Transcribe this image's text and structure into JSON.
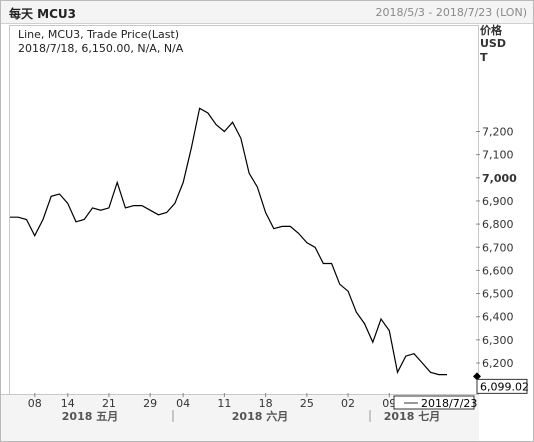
{
  "window": {
    "title": "每天 MCU3",
    "date_range": "2018/5/3 - 2018/7/23 (LON)"
  },
  "legend": {
    "line1": "Line, MCU3, Trade Price(Last)",
    "line2": "2018/7/18, 6,150.00, N/A, N/A"
  },
  "y_axis_header": {
    "line1": "价格",
    "line2": "USD",
    "line3": "T"
  },
  "last_price_label": "6,099.02",
  "crosshair_date_label": "2018/7/23",
  "colors": {
    "line": "#000000",
    "last_price_bg": "#ffffff",
    "panel_bg": "#f4f4f4"
  },
  "chart_data": {
    "type": "line",
    "title": "每天 MCU3",
    "ylim": [
      6140,
      7400
    ],
    "y_ticks": [
      6200,
      6300,
      6400,
      6500,
      6600,
      6700,
      6800,
      6900,
      7000,
      7100,
      7200
    ],
    "y_tick_labels": [
      "6,200",
      "6,300",
      "6,400",
      "6,500",
      "6,600",
      "6,700",
      "6,800",
      "6,900",
      "7,000",
      "7,100",
      "7,200"
    ],
    "x_tick_labels": [
      {
        "label": "08",
        "date": "2018/5/8"
      },
      {
        "label": "14",
        "date": "2018/5/14"
      },
      {
        "label": "21",
        "date": "2018/5/21"
      },
      {
        "label": "29",
        "date": "2018/5/29"
      },
      {
        "label": "04",
        "date": "2018/6/4"
      },
      {
        "label": "11",
        "date": "2018/6/11"
      },
      {
        "label": "18",
        "date": "2018/6/18"
      },
      {
        "label": "25",
        "date": "2018/6/25"
      },
      {
        "label": "02",
        "date": "2018/7/2"
      },
      {
        "label": "09",
        "date": "2018/7/9"
      }
    ],
    "month_labels": [
      "2018 五月",
      "2018 六月",
      "2018 七月"
    ],
    "series": [
      {
        "x": [
          "2018/5/3",
          "2018/5/4",
          "2018/5/7",
          "2018/5/8",
          "2018/5/9",
          "2018/5/10",
          "2018/5/11",
          "2018/5/14",
          "2018/5/15",
          "2018/5/16",
          "2018/5/17",
          "2018/5/18",
          "2018/5/21",
          "2018/5/22",
          "2018/5/23",
          "2018/5/24",
          "2018/5/25",
          "2018/5/29",
          "2018/5/30",
          "2018/5/31",
          "2018/6/1",
          "2018/6/4",
          "2018/6/5",
          "2018/6/6",
          "2018/6/7",
          "2018/6/8",
          "2018/6/11",
          "2018/6/12",
          "2018/6/13",
          "2018/6/14",
          "2018/6/15",
          "2018/6/18",
          "2018/6/19",
          "2018/6/20",
          "2018/6/21",
          "2018/6/22",
          "2018/6/25",
          "2018/6/26",
          "2018/6/27",
          "2018/6/28",
          "2018/6/29",
          "2018/7/2",
          "2018/7/3",
          "2018/7/4",
          "2018/7/5",
          "2018/7/6",
          "2018/7/9",
          "2018/7/10",
          "2018/7/11",
          "2018/7/12",
          "2018/7/13",
          "2018/7/16",
          "2018/7/17",
          "2018/7/18"
        ],
        "values": [
          6830,
          6830,
          6820,
          6750,
          6820,
          6920,
          6930,
          6890,
          6810,
          6820,
          6870,
          6860,
          6870,
          6980,
          6870,
          6880,
          6880,
          6860,
          6840,
          6850,
          6890,
          6980,
          7130,
          7300,
          7280,
          7230,
          7200,
          7240,
          7170,
          7020,
          6960,
          6850,
          6780,
          6790,
          6790,
          6760,
          6720,
          6700,
          6630,
          6630,
          6540,
          6510,
          6420,
          6370,
          6290,
          6390,
          6340,
          6160,
          6230,
          6240,
          6200,
          6160,
          6150,
          6150
        ]
      }
    ],
    "last_value": 6099.02,
    "grid": false,
    "legend_placement": "top-left"
  }
}
